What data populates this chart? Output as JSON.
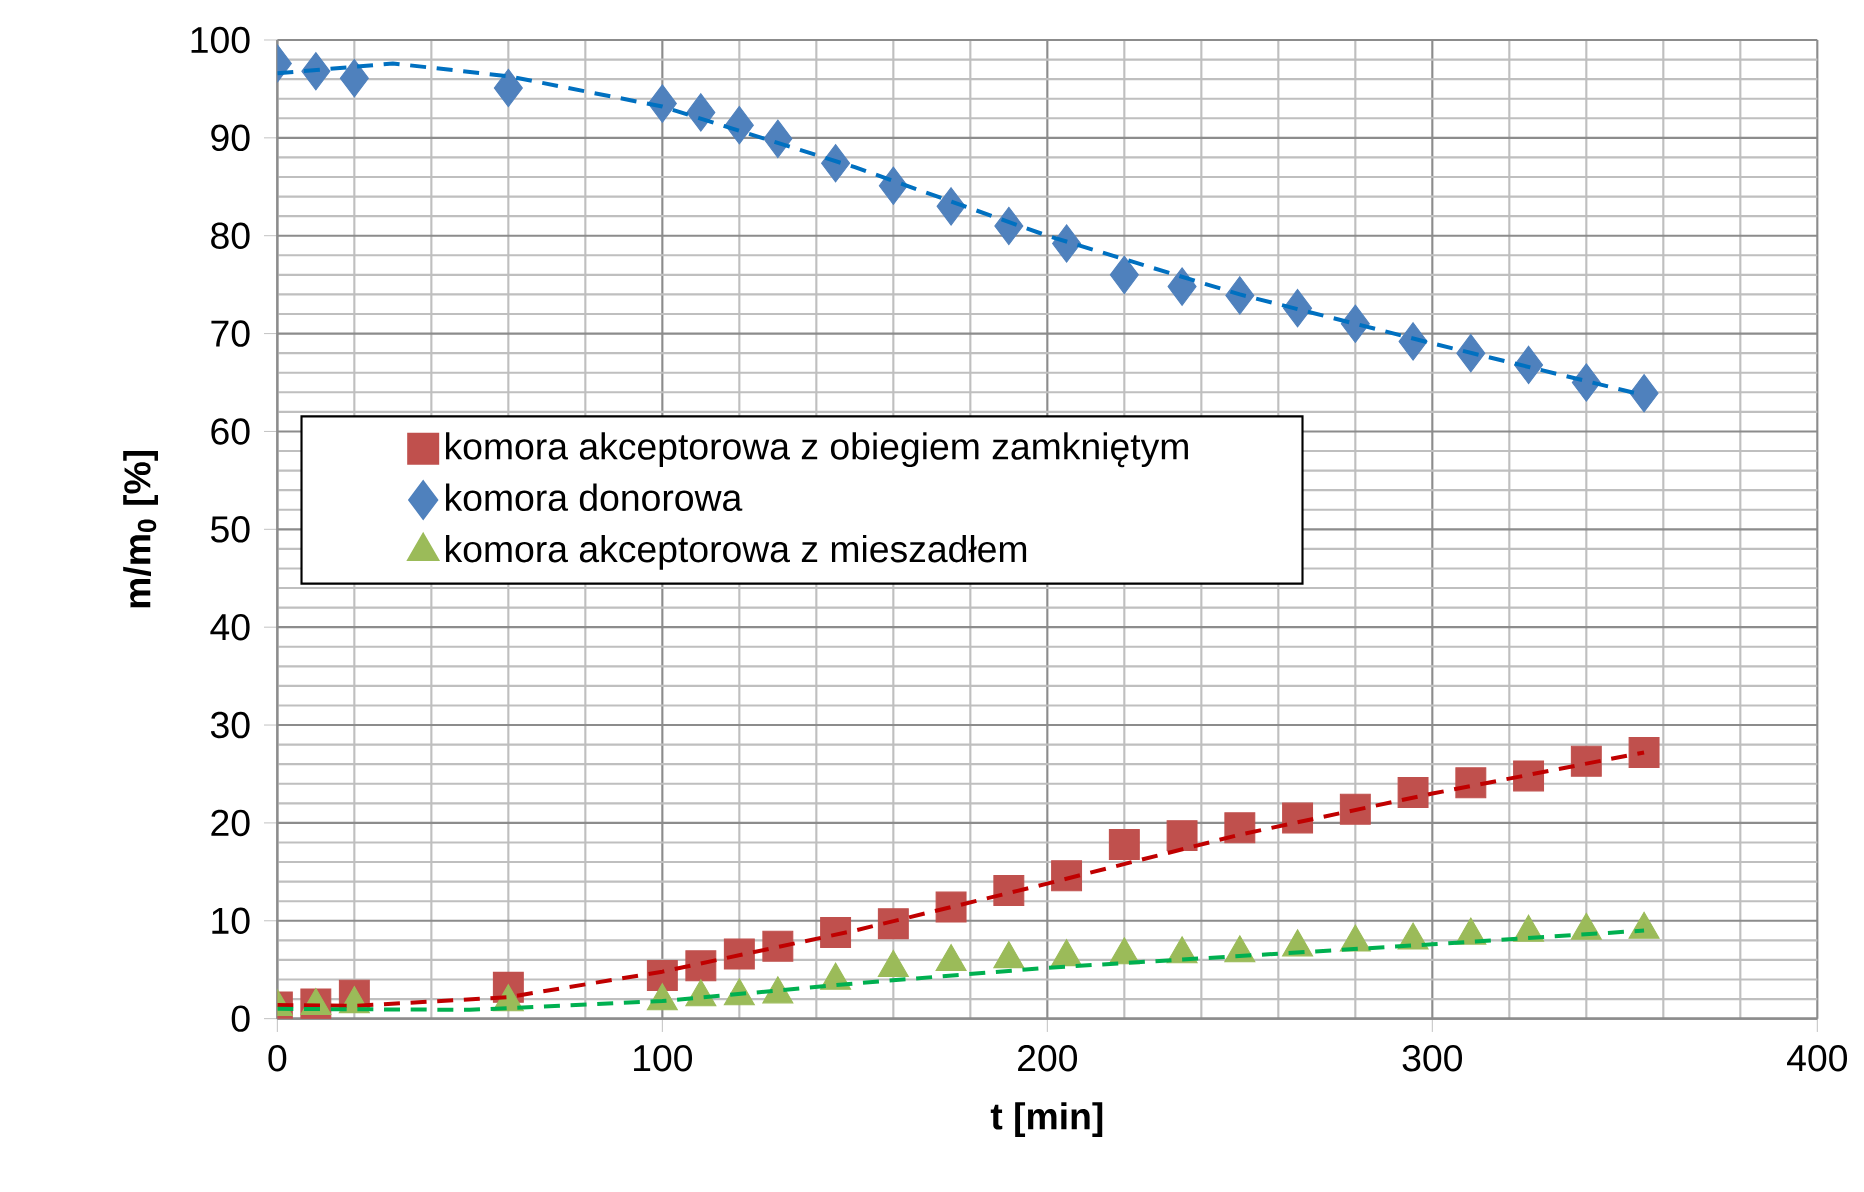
{
  "chart_data": {
    "type": "scatter",
    "xlabel": "t [min]",
    "ylabel": "m/m$_{0}$ [%]",
    "xlim": [
      0,
      400
    ],
    "ylim": [
      0,
      100
    ],
    "xticks": [
      0,
      100,
      200,
      300,
      400
    ],
    "yticks": [
      0,
      10,
      20,
      30,
      40,
      50,
      60,
      70,
      80,
      90,
      100
    ],
    "grid": true,
    "legend": "left",
    "series": [
      {
        "name": "komora akceptorowa z obiegiem zamkniętym",
        "color": "#c0504d",
        "marker": "square",
        "x": [
          0,
          10,
          20,
          60,
          100,
          110,
          120,
          130,
          145,
          160,
          175,
          190,
          205,
          220,
          235,
          250,
          265,
          280,
          295,
          310,
          325,
          340,
          355
        ],
        "values": [
          1.2,
          1.5,
          2.4,
          3.2,
          4.4,
          5.4,
          6.6,
          7.4,
          8.8,
          9.7,
          11.4,
          13.1,
          14.6,
          17.8,
          18.7,
          19.5,
          20.5,
          21.4,
          23.1,
          24.1,
          24.8,
          26.3,
          27.2
        ]
      },
      {
        "name": "komora donorowa",
        "color": "#4f81bd",
        "marker": "diamond",
        "x": [
          0,
          10,
          20,
          60,
          100,
          110,
          120,
          130,
          145,
          160,
          175,
          190,
          205,
          220,
          235,
          250,
          265,
          280,
          295,
          310,
          325,
          340,
          355
        ],
        "values": [
          97.6,
          96.8,
          96.1,
          95.1,
          93.5,
          92.6,
          91.3,
          89.9,
          87.4,
          85.1,
          83.0,
          81.0,
          79.2,
          76.0,
          74.8,
          73.9,
          72.6,
          71.0,
          69.2,
          68.0,
          66.8,
          65.0,
          63.9
        ]
      },
      {
        "name": "komora akceptorowa z mieszadłem",
        "color": "#9bbb59",
        "marker": "triangle",
        "x": [
          0,
          10,
          20,
          60,
          100,
          110,
          120,
          130,
          145,
          160,
          175,
          190,
          205,
          220,
          235,
          250,
          265,
          280,
          295,
          310,
          325,
          340,
          355
        ],
        "values": [
          1.2,
          1.3,
          1.5,
          1.7,
          1.8,
          2.2,
          2.3,
          2.5,
          3.9,
          5.2,
          5.8,
          6.1,
          6.3,
          6.5,
          6.6,
          6.7,
          7.3,
          7.8,
          8.0,
          8.5,
          8.8,
          9.0,
          9.1
        ]
      },
      {
        "type": "line",
        "color": "#c00000",
        "line_style": "dashed",
        "marker": "none",
        "x": [
          0,
          20,
          60,
          100,
          150,
          200,
          250,
          300,
          355
        ],
        "values": [
          1.4,
          1.3,
          2.2,
          4.8,
          9.0,
          13.8,
          18.8,
          23.0,
          27.2
        ]
      },
      {
        "type": "line",
        "color": "#0070c0",
        "line_style": "dashed",
        "marker": "none",
        "x": [
          0,
          30,
          60,
          100,
          150,
          200,
          250,
          300,
          355
        ],
        "values": [
          96.6,
          97.6,
          96.3,
          93.2,
          87.0,
          80.0,
          74.0,
          69.0,
          63.7
        ]
      },
      {
        "type": "line",
        "color": "#00b050",
        "line_style": "dashed",
        "marker": "none",
        "x": [
          0,
          50,
          100,
          150,
          200,
          250,
          300,
          355
        ],
        "values": [
          1.0,
          0.9,
          1.8,
          3.6,
          5.2,
          6.4,
          7.6,
          9.0
        ]
      }
    ]
  }
}
